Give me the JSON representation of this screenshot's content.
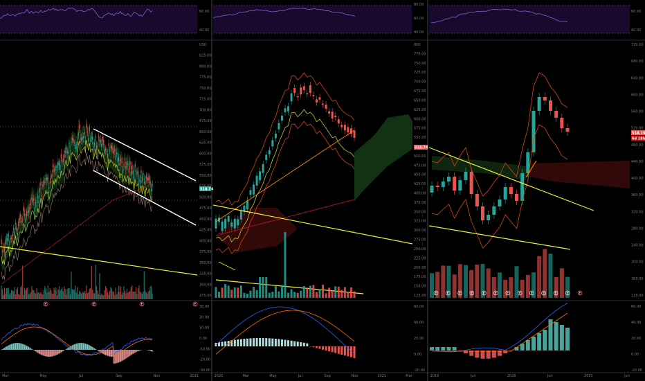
{
  "colors": {
    "background": "#000000",
    "up": "#26a69a",
    "down": "#ef5350",
    "rsi_line": "#7e57c2",
    "rsi_band": "#2a0f4a",
    "trendline_yellow": "#f2f22e",
    "trendline_white": "#ffffff",
    "macd_line": "#2962ff",
    "signal_line": "#ff6d00",
    "separator": "#2a2e39",
    "text": "#7d7d7d"
  },
  "panels": [
    {
      "id": "left",
      "rsi_ticks": [
        "60.00",
        "40.00"
      ],
      "price_ticks": [
        "USD",
        "825.00",
        "800.00",
        "775.00",
        "750.00",
        "725.00",
        "700.00",
        "675.00",
        "650.00",
        "625.00",
        "600.00",
        "575.00",
        "550.00",
        "525.00",
        "500.00",
        "475.00",
        "450.00",
        "425.00",
        "400.00",
        "375.00",
        "350.00",
        "325.00",
        "300.00",
        "275.00"
      ],
      "price_label": "518.74",
      "x_ticks": [
        "Mar",
        "May",
        "Jul",
        "Sep",
        "Nov",
        "2021"
      ],
      "macd_ticks": [
        "30.00",
        "20.00",
        "10.00",
        "0.00",
        "-10.00",
        "-20.00",
        "-30.00"
      ],
      "event_marker": "E"
    },
    {
      "id": "middle",
      "rsi_ticks": [
        "80.00",
        "60.00",
        "40.00"
      ],
      "price_ticks": [
        "800",
        "775.00",
        "750.00",
        "725.00",
        "700.00",
        "675.00",
        "650.00",
        "625.00",
        "600.00",
        "575.00",
        "550.00",
        "525.00",
        "500.00",
        "475.00",
        "450.00",
        "425.00",
        "400.00",
        "375.00",
        "350.00",
        "325.00",
        "300.00",
        "275.00",
        "250.00",
        "225.00",
        "200.00",
        "175.00",
        "150.00",
        "125.00"
      ],
      "price_label": "518.74",
      "x_ticks": [
        "2020",
        "Mar",
        "May",
        "Jul",
        "Sep",
        "Nov",
        "2021",
        "Mar"
      ],
      "macd_ticks": [
        "60.00",
        "40.00",
        "20.00",
        "0.00",
        "-20.00"
      ]
    },
    {
      "id": "right",
      "rsi_ticks": [
        "60.00",
        "40.00"
      ],
      "price_ticks": [
        "720.00",
        "680.00",
        "640.00",
        "600.00",
        "560.00",
        "520.00",
        "480.00",
        "440.00",
        "400.00",
        "360.00",
        "320.00",
        "280.00",
        "240.00",
        "200.00",
        "160.00",
        "120.00"
      ],
      "price_label": "518.74",
      "price_label_2": "6d 18h",
      "x_ticks": [
        "2019",
        "Jun",
        "2020",
        "Jun",
        "2021",
        "Jun"
      ],
      "macd_ticks": [
        "60.00",
        "40.00",
        "20.00",
        "0.00",
        "-20.00"
      ],
      "event_marker": "E"
    }
  ]
}
